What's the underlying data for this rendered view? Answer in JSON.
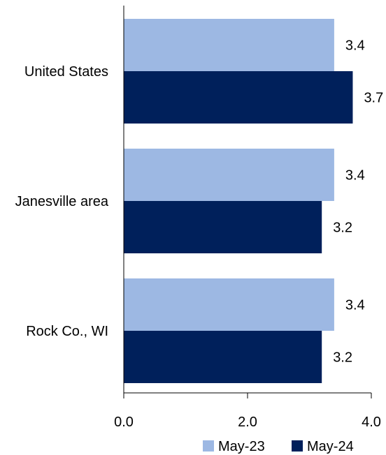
{
  "chart_data": {
    "type": "bar",
    "orientation": "horizontal",
    "categories": [
      "United States",
      "Janesville area",
      "Rock Co., WI"
    ],
    "series": [
      {
        "name": "May-23",
        "values": [
          3.4,
          3.4,
          3.4
        ],
        "color": "#9db8e3"
      },
      {
        "name": "May-24",
        "values": [
          3.7,
          3.2,
          3.2
        ],
        "color": "#00205b"
      }
    ],
    "xlim": [
      0,
      4
    ],
    "xticks": [
      {
        "value": 0,
        "label": "0.0"
      },
      {
        "value": 2,
        "label": "2.0"
      },
      {
        "value": 4,
        "label": "4.0"
      }
    ],
    "data_labels": [
      [
        "3.4",
        "3.4",
        "3.4"
      ],
      [
        "3.7",
        "3.2",
        "3.2"
      ]
    ],
    "title": "",
    "xlabel": "",
    "ylabel": "",
    "grid": false,
    "legend": "bottom-right"
  }
}
